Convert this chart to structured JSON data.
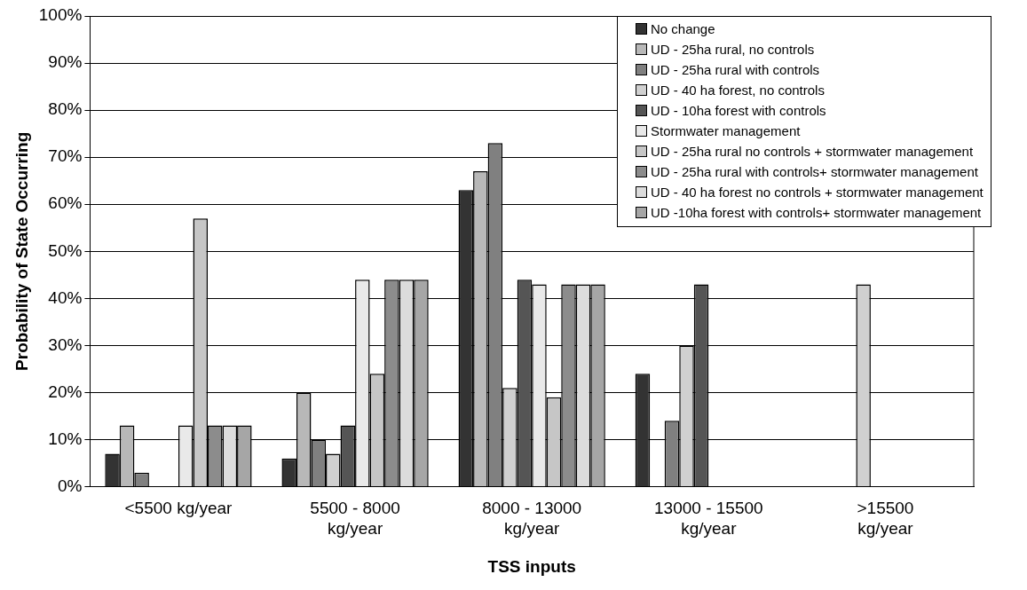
{
  "chart_data": {
    "type": "bar",
    "xlabel": "TSS inputs",
    "ylabel": "Probability of State Occurring",
    "categories": [
      "<5500 kg/year",
      "5500 - 8000 kg/year",
      "8000 - 13000 kg/year",
      "13000 - 15500 kg/year",
      ">15500 kg/year"
    ],
    "series": [
      {
        "name": "No change",
        "color": "#333333",
        "values": [
          7,
          6,
          63,
          24,
          0
        ]
      },
      {
        "name": "UD - 25ha rural, no controls",
        "color": "#b8b8b8",
        "values": [
          13,
          20,
          67,
          0,
          0
        ]
      },
      {
        "name": "UD - 25ha rural with controls",
        "color": "#808080",
        "values": [
          3,
          10,
          73,
          14,
          0
        ]
      },
      {
        "name": "UD - 40 ha forest, no controls",
        "color": "#d0d0d0",
        "values": [
          0,
          7,
          21,
          30,
          43
        ]
      },
      {
        "name": "UD - 10ha forest with controls",
        "color": "#555555",
        "values": [
          0,
          13,
          44,
          43,
          0
        ]
      },
      {
        "name": "Stormwater management",
        "color": "#e9e9e9",
        "values": [
          13,
          44,
          43,
          0,
          0
        ]
      },
      {
        "name": "UD - 25ha rural no controls + stormwater management",
        "color": "#c6c6c6",
        "values": [
          57,
          24,
          19,
          0,
          0
        ]
      },
      {
        "name": "UD - 25ha rural with controls+ stormwater management",
        "color": "#8c8c8c",
        "values": [
          13,
          44,
          43,
          0,
          0
        ]
      },
      {
        "name": "UD - 40 ha forest no controls + stormwater management",
        "color": "#dcdcdc",
        "values": [
          13,
          44,
          43,
          0,
          0
        ]
      },
      {
        "name": "UD -10ha forest with controls+ stormwater management",
        "color": "#a6a6a6",
        "values": [
          13,
          44,
          43,
          0,
          0
        ]
      }
    ],
    "ylim": [
      0,
      100
    ],
    "yticks": [
      {
        "value": 0,
        "label": "0%"
      },
      {
        "value": 10,
        "label": "10%"
      },
      {
        "value": 20,
        "label": "20%"
      },
      {
        "value": 30,
        "label": "30%"
      },
      {
        "value": 40,
        "label": "40%"
      },
      {
        "value": 50,
        "label": "50%"
      },
      {
        "value": 60,
        "label": "60%"
      },
      {
        "value": 70,
        "label": "70%"
      },
      {
        "value": 80,
        "label": "80%"
      },
      {
        "value": 90,
        "label": "90%"
      },
      {
        "value": 100,
        "label": "100%"
      }
    ],
    "grid": "y",
    "legend": "top right"
  }
}
